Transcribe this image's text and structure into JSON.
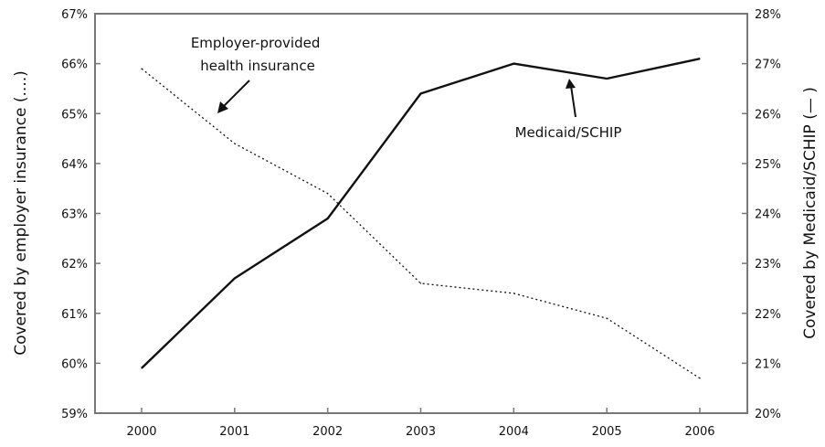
{
  "chart_data": {
    "type": "line",
    "title": "",
    "categories": [
      "2000",
      "2001",
      "2002",
      "2003",
      "2004",
      "2005",
      "2006"
    ],
    "x": [
      2000,
      2001,
      2002,
      2003,
      2004,
      2005,
      2006
    ],
    "left_axis": {
      "label": "Covered by employer insurance (....)",
      "ylim": [
        59,
        67
      ],
      "ticks": [
        "59%",
        "60%",
        "61%",
        "62%",
        "63%",
        "64%",
        "65%",
        "66%",
        "67%"
      ]
    },
    "right_axis": {
      "label": "Covered by Medicaid/SCHIP (— )",
      "ylim": [
        20,
        28
      ],
      "ticks": [
        "20%",
        "21%",
        "22%",
        "23%",
        "24%",
        "25%",
        "26%",
        "27%",
        "28%"
      ]
    },
    "series": [
      {
        "name": "Employer-provided health insurance",
        "axis": "left",
        "style": "dotted",
        "values": [
          65.9,
          64.4,
          63.4,
          61.6,
          61.4,
          60.9,
          59.7
        ]
      },
      {
        "name": "Medicaid/SCHIP",
        "axis": "right",
        "style": "solid",
        "values": [
          20.9,
          22.7,
          23.9,
          26.4,
          27.0,
          26.7,
          27.1
        ]
      }
    ],
    "annotations": [
      {
        "lines": [
          "Employer-provided",
          "health insurance"
        ],
        "points_to": "Employer-provided health insurance"
      },
      {
        "lines": [
          "Medicaid/SCHIP"
        ],
        "points_to": "Medicaid/SCHIP"
      }
    ],
    "grid": false,
    "legend": "none",
    "colors": {
      "line": "#111111",
      "frame": "#777777"
    }
  }
}
